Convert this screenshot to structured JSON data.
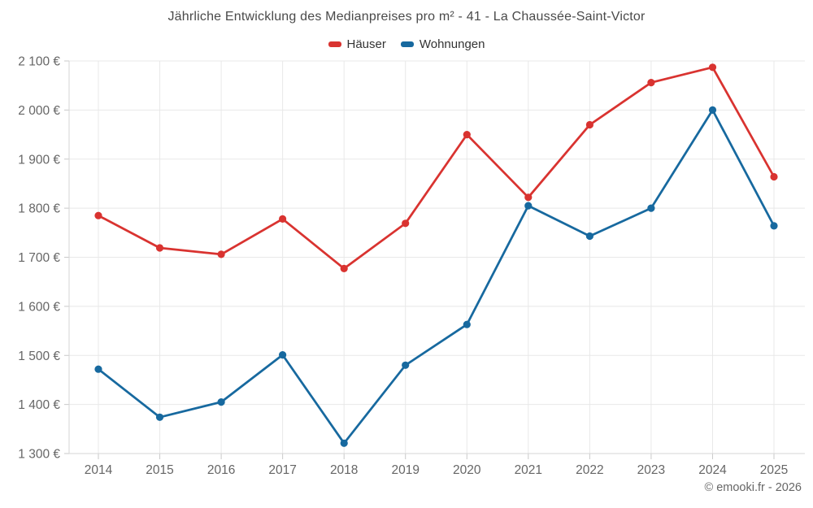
{
  "title": "Jährliche Entwicklung des Medianpreises pro m² - 41 - La Chaussée-Saint-Victor",
  "footer": "© emooki.fr - 2026",
  "colors": {
    "hauser": "#d93330",
    "wohnungen": "#17699f",
    "grid": "#e8e8e8",
    "axis": "#d6d6d6",
    "tick": "#c9c9c9",
    "label": "#666666"
  },
  "chart_data": {
    "type": "line",
    "title": "Jährliche Entwicklung des Medianpreises pro m² - 41 - La Chaussée-Saint-Victor",
    "categories": [
      "2014",
      "2015",
      "2016",
      "2017",
      "2018",
      "2019",
      "2020",
      "2021",
      "2022",
      "2023",
      "2024",
      "2025"
    ],
    "series": [
      {
        "name": "Häuser",
        "color": "#d93330",
        "values": [
          1785,
          1719,
          1706,
          1778,
          1677,
          1769,
          1950,
          1822,
          1970,
          2056,
          2087,
          1864
        ]
      },
      {
        "name": "Wohnungen",
        "color": "#17699f",
        "values": [
          1472,
          1374,
          1405,
          1501,
          1321,
          1480,
          1563,
          1805,
          1743,
          1800,
          2000,
          1764
        ]
      }
    ],
    "xlabel": "",
    "ylabel": "",
    "ylim": [
      1300,
      2100
    ],
    "ytick_step": 100,
    "ytick_labels": [
      "1 300 €",
      "1 400 €",
      "1 500 €",
      "1 600 €",
      "1 700 €",
      "1 800 €",
      "1 900 €",
      "2 000 €",
      "2 100 €"
    ],
    "grid": true,
    "legend_position": "top",
    "unit": "€"
  }
}
